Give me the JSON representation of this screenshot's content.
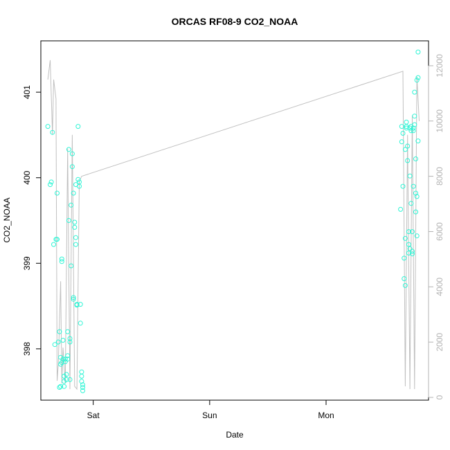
{
  "chart_data": {
    "type": "scatter",
    "title": "ORCAS RF08-9 CO2_NOAA",
    "xlabel": "Date",
    "ylabel": "CO2_NOAA",
    "x_ticks": [
      "Sat",
      "Sun",
      "Mon"
    ],
    "x_tick_days": [
      1,
      2,
      3
    ],
    "x_range_days": [
      0.55,
      3.88
    ],
    "ylim": [
      397.4,
      401.6
    ],
    "y_ticks": [
      398,
      399,
      400,
      401
    ],
    "y2lim": [
      -100,
      12900
    ],
    "y2_ticks": [
      0,
      2000,
      4000,
      6000,
      8000,
      10000,
      12000
    ],
    "colors": {
      "points": "#2ef5d5",
      "line": "#c0c0c0",
      "right_axis": "#b3b3b3",
      "axis": "#000000"
    },
    "series": [
      {
        "kind": "points",
        "axis": "left",
        "x_days": [
          0.61,
          0.63,
          0.64,
          0.65,
          0.66,
          0.67,
          0.68,
          0.69,
          0.69,
          0.7,
          0.71,
          0.71,
          0.72,
          0.72,
          0.72,
          0.73,
          0.73,
          0.73,
          0.74,
          0.74,
          0.75,
          0.75,
          0.75,
          0.76,
          0.76,
          0.77,
          0.77,
          0.78,
          0.78,
          0.78,
          0.79,
          0.79,
          0.8,
          0.8,
          0.8,
          0.81,
          0.81,
          0.82,
          0.82,
          0.83,
          0.83,
          0.83,
          0.84,
          0.84,
          0.85,
          0.85,
          0.85,
          0.86,
          0.86,
          0.87,
          0.87,
          0.88,
          0.88,
          0.89,
          0.89,
          0.9,
          0.9,
          0.9,
          0.91,
          0.91,
          0.91,
          3.64,
          3.65,
          3.65,
          3.66,
          3.66,
          3.67,
          3.67,
          3.68,
          3.68,
          3.68,
          3.69,
          3.69,
          3.69,
          3.7,
          3.7,
          3.71,
          3.71,
          3.71,
          3.72,
          3.72,
          3.72,
          3.73,
          3.73,
          3.73,
          3.74,
          3.74,
          3.74,
          3.75,
          3.75,
          3.75,
          3.76,
          3.76,
          3.76,
          3.77,
          3.77,
          3.77,
          3.78,
          3.78,
          3.78,
          3.79,
          3.79,
          3.79
        ],
        "values": [
          400.6,
          399.92,
          399.95,
          400.53,
          399.22,
          398.05,
          399.28,
          399.82,
          399.28,
          398.08,
          398.2,
          397.55,
          397.82,
          397.9,
          397.56,
          397.84,
          399.05,
          399.02,
          398.1,
          397.88,
          397.56,
          397.62,
          397.68,
          397.85,
          397.88,
          397.64,
          397.7,
          397.88,
          397.92,
          398.2,
          400.33,
          399.5,
          397.64,
          398.12,
          398.08,
          398.97,
          399.68,
          400.13,
          400.28,
          399.82,
          398.58,
          398.6,
          399.42,
          399.48,
          399.92,
          399.3,
          399.22,
          398.52,
          398.51,
          399.98,
          400.6,
          399.9,
          399.95,
          398.52,
          398.3,
          397.62,
          397.73,
          397.68,
          397.55,
          397.51,
          397.58,
          399.63,
          400.42,
          400.6,
          400.52,
          399.9,
          399.06,
          398.82,
          398.74,
          400.33,
          399.29,
          400.65,
          400.58,
          400.6,
          400.37,
          400.2,
          399.22,
          399.12,
          399.37,
          399.17,
          400.02,
          400.58,
          400.6,
          399.7,
          400.55,
          399.37,
          399.14,
          399.11,
          400.58,
          400.55,
          399.9,
          400.72,
          400.62,
          401.0,
          400.22,
          399.82,
          399.6,
          399.78,
          399.32,
          401.14,
          401.17,
          401.47,
          400.43
        ]
      },
      {
        "kind": "line",
        "axis": "right",
        "x_days": [
          0.61,
          0.63,
          0.65,
          0.66,
          0.68,
          0.69,
          0.7,
          0.72,
          0.73,
          0.74,
          0.76,
          0.78,
          0.8,
          0.82,
          0.84,
          0.86,
          0.88,
          0.9,
          3.66,
          3.68,
          3.7,
          3.72,
          3.74,
          3.76,
          3.78,
          3.8
        ],
        "values": [
          11500,
          12200,
          9500,
          11500,
          10800,
          600,
          1200,
          4200,
          500,
          1800,
          500,
          9000,
          300,
          9500,
          400,
          300,
          7800,
          8000,
          11800,
          400,
          9500,
          300,
          10200,
          300,
          11600,
          10000
        ]
      }
    ]
  }
}
